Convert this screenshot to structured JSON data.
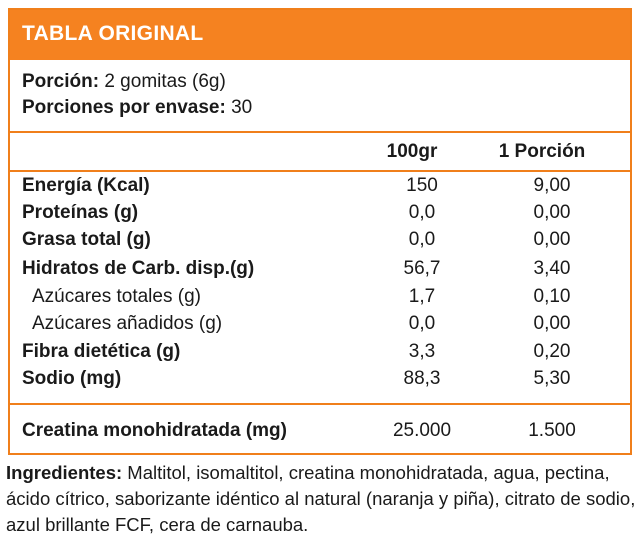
{
  "header": {
    "title": "TABLA ORIGINAL"
  },
  "serving": {
    "portion_label": "Porción:",
    "portion_value": " 2 gomitas (6g)",
    "per_container_label": "Porciones por envase:",
    "per_container_value": " 30"
  },
  "columns": {
    "per100": "100gr",
    "per_portion": "1 Porción"
  },
  "rows": [
    {
      "label": "Energía (Kcal)",
      "per100": "150",
      "per_portion": "9,00"
    },
    {
      "label": "Proteínas (g)",
      "per100": "0,0",
      "per_portion": "0,00"
    },
    {
      "label": "Grasa total (g)",
      "per100": "0,0",
      "per_portion": "0,00"
    },
    {
      "label": "Hidratos de Carb. disp.(g)",
      "per100": "56,7",
      "per_portion": "3,40"
    },
    {
      "label": "Azúcares totales (g)",
      "per100": "1,7",
      "per_portion": "0,10"
    },
    {
      "label": "Azúcares añadidos (g)",
      "per100": "0,0",
      "per_portion": "0,00"
    },
    {
      "label": "Fibra dietética (g)",
      "per100": "3,3",
      "per_portion": "0,20"
    },
    {
      "label": "Sodio (mg)",
      "per100": "88,3",
      "per_portion": "5,30"
    }
  ],
  "creatine": {
    "label": "Creatina monohidratada (mg)",
    "per100": "25.000",
    "per_portion": "1.500"
  },
  "ingredients": {
    "label": "Ingredientes:",
    "text": " Maltitol, isomaltitol, creatina monohidratada, agua, pectina, ácido cítrico, saborizante idéntico al natural (naranja y piña), citrato de sodio, azul brillante FCF, cera de carnauba."
  },
  "colors": {
    "accent": "#f58220",
    "header_text": "#ffffff"
  }
}
